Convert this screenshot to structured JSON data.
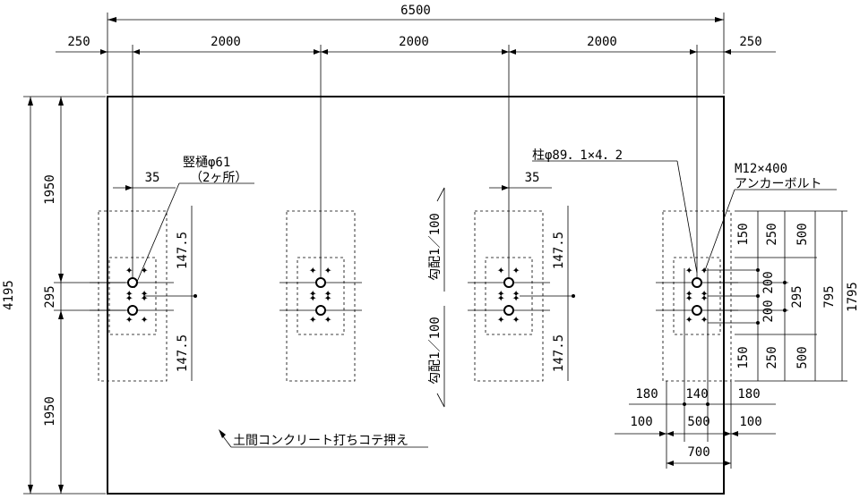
{
  "dimensions": {
    "total_width": "6500",
    "edge_left": "250",
    "edge_right": "250",
    "span_1": "2000",
    "span_2": "2000",
    "span_3": "2000",
    "total_height": "4195",
    "left_top": "1950",
    "left_mid": "295",
    "left_bottom": "1950",
    "offset_35_left": "35",
    "offset_35_right": "35",
    "up_147_5_left": "147.5",
    "down_147_5_left": "147.5",
    "up_147_5_right": "147.5",
    "down_147_5_right": "147.5",
    "r_150_top": "150",
    "r_250_top": "250",
    "r_500_top": "500",
    "r_200_top": "200",
    "r_295": "295",
    "r_200_bottom": "200",
    "r_150_bottom": "150",
    "r_250_bottom": "250",
    "r_500_bottom": "500",
    "r_795": "795",
    "r_1795": "1795",
    "b_180_left": "180",
    "b_140": "140",
    "b_180_right": "180",
    "b_100_left": "100",
    "b_500": "500",
    "b_100_right": "100",
    "b_700": "700"
  },
  "labels": {
    "downspout": "竪樋φ61",
    "downspout_count": "（2ヶ所）",
    "column": "柱φ89．1×4．2",
    "anchor_size": "M12×400",
    "anchor_name": "アンカーボルト",
    "slope_upper": "勾配1／100",
    "slope_lower": "勾配1／100",
    "floor_finish": "土間コンクリート打ちコテ押え"
  }
}
